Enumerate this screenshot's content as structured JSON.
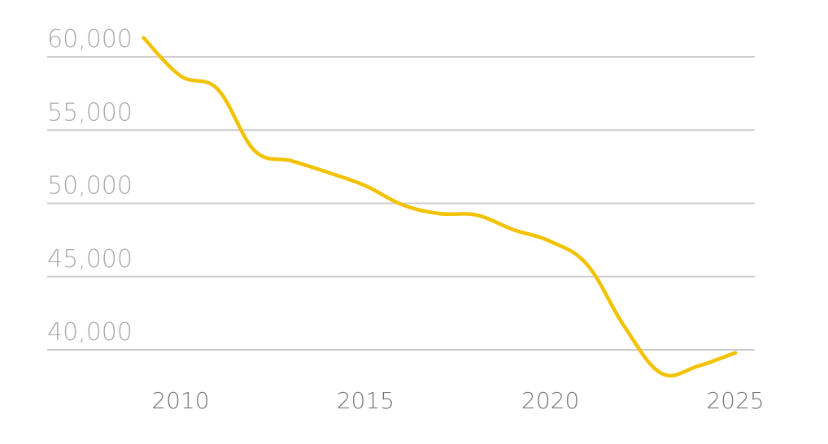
{
  "chart_data": {
    "type": "line",
    "title": "",
    "xlabel": "",
    "ylabel": "",
    "xlim": [
      2006.2,
      2025
    ],
    "ylim": [
      40000,
      60000
    ],
    "grid": true,
    "y_ticks": [
      {
        "value": 60000,
        "label": "60,000"
      },
      {
        "value": 55000,
        "label": "55,000"
      },
      {
        "value": 50000,
        "label": "50,000"
      },
      {
        "value": 45000,
        "label": "45,000"
      },
      {
        "value": 40000,
        "label": "40,000"
      }
    ],
    "x_ticks": [
      {
        "value": 2010,
        "label": "2010"
      },
      {
        "value": 2015,
        "label": "2015"
      },
      {
        "value": 2020,
        "label": "2020"
      },
      {
        "value": 2025,
        "label": "2025"
      }
    ],
    "series": [
      {
        "color": "#f2c200",
        "points": [
          {
            "x": 2009,
            "y": 61300
          },
          {
            "x": 2010,
            "y": 58700
          },
          {
            "x": 2011,
            "y": 57800
          },
          {
            "x": 2012,
            "y": 53600
          },
          {
            "x": 2013,
            "y": 52900
          },
          {
            "x": 2014,
            "y": 52100
          },
          {
            "x": 2015,
            "y": 51200
          },
          {
            "x": 2016,
            "y": 49900
          },
          {
            "x": 2017,
            "y": 49300
          },
          {
            "x": 2018,
            "y": 49200
          },
          {
            "x": 2019,
            "y": 48200
          },
          {
            "x": 2020,
            "y": 47400
          },
          {
            "x": 2021,
            "y": 45800
          },
          {
            "x": 2022,
            "y": 41600
          },
          {
            "x": 2023,
            "y": 38400
          },
          {
            "x": 2024,
            "y": 38900
          },
          {
            "x": 2025,
            "y": 39800
          }
        ]
      }
    ]
  }
}
